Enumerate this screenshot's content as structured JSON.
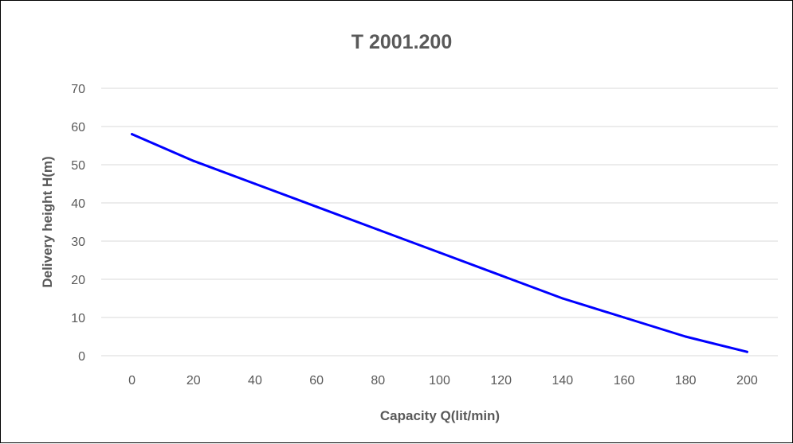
{
  "chart_data": {
    "type": "line",
    "title": "T 2001.200",
    "xlabel": "Capacity Q(lit/min)",
    "ylabel": "Delivery height H(m)",
    "categories": [
      "0",
      "20",
      "40",
      "60",
      "80",
      "100",
      "120",
      "140",
      "160",
      "180",
      "200"
    ],
    "y_ticks": [
      "0",
      "10",
      "20",
      "30",
      "40",
      "50",
      "60",
      "70"
    ],
    "ylim": [
      0,
      70
    ],
    "grid": "horizontal",
    "legend": "none",
    "series": [
      {
        "values": [
          58,
          51,
          45,
          39,
          33,
          27,
          21,
          15,
          10,
          5,
          1
        ],
        "color": "#0000ff"
      }
    ],
    "colors": {
      "gridline": "#d9d9d9",
      "text": "#595959",
      "frame": "#000000"
    }
  }
}
